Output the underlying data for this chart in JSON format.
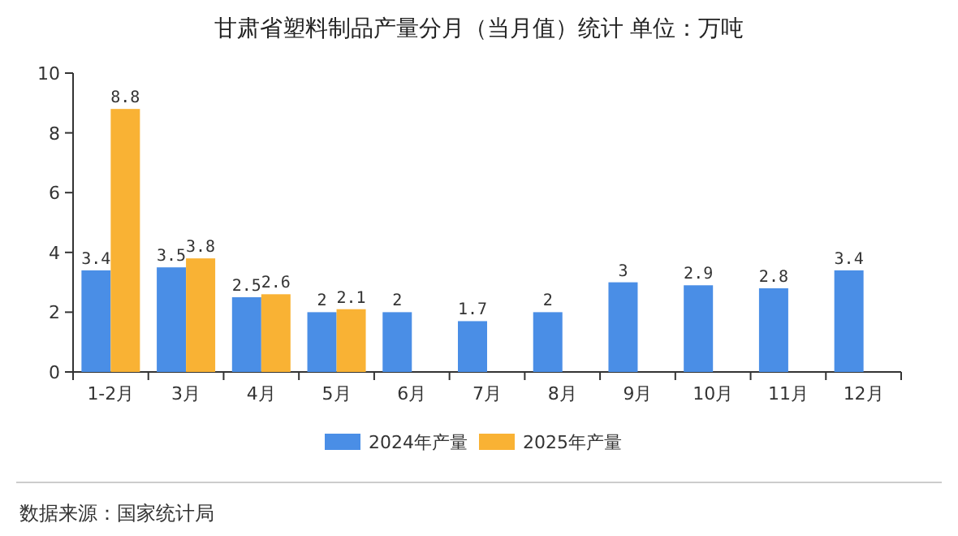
{
  "chart_data": {
    "type": "bar",
    "title": "甘肃省塑料制品产量分月（当月值）统计  单位：万吨",
    "categories": [
      "1-2月",
      "3月",
      "4月",
      "5月",
      "6月",
      "7月",
      "8月",
      "9月",
      "10月",
      "11月",
      "12月"
    ],
    "series": [
      {
        "name": "2024年产量",
        "color": "#4a8ee6",
        "values": [
          3.4,
          3.5,
          2.5,
          2,
          2,
          1.7,
          2,
          3,
          2.9,
          2.8,
          3.4
        ]
      },
      {
        "name": "2025年产量",
        "color": "#f9b234",
        "values": [
          8.8,
          3.8,
          2.6,
          2.1,
          null,
          null,
          null,
          null,
          null,
          null,
          null
        ]
      }
    ],
    "ylim": [
      0,
      10
    ],
    "yticks": [
      0,
      2,
      4,
      6,
      8,
      10
    ],
    "legend": "bottom",
    "data_labels": true,
    "annotations": [
      "数据来源：国家统计局"
    ]
  }
}
